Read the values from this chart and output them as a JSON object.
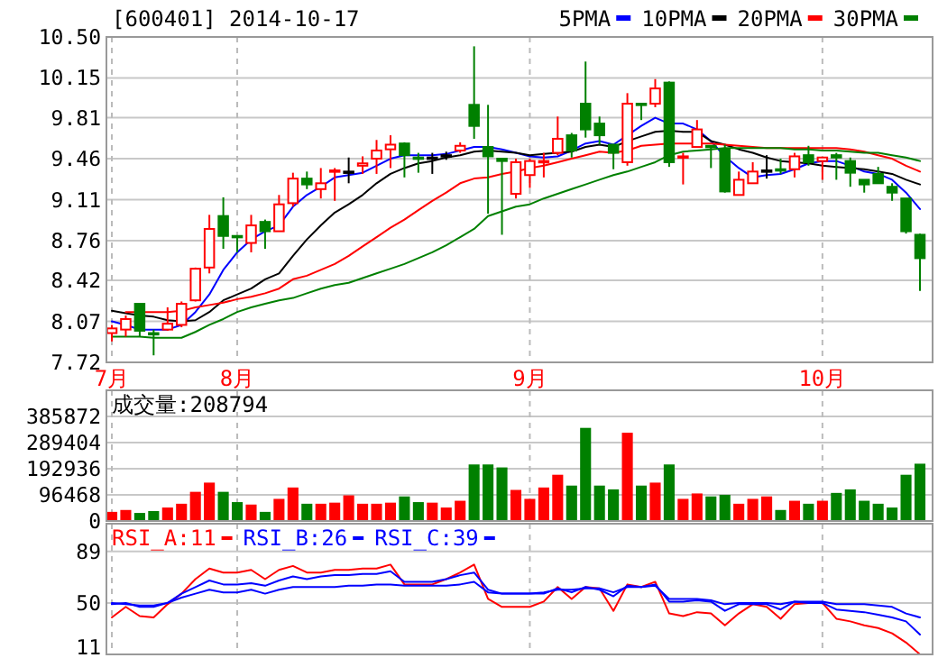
{
  "chart_data": [
    {
      "type": "candlestick",
      "title": "[600401] 2014-10-17",
      "grid": true,
      "legend": "top right",
      "categories": [
        "7月",
        null,
        null,
        null,
        null,
        null,
        null,
        null,
        null,
        "8月",
        null,
        null,
        null,
        null,
        null,
        null,
        null,
        null,
        null,
        null,
        null,
        null,
        null,
        null,
        null,
        null,
        null,
        null,
        null,
        null,
        "9月",
        null,
        null,
        null,
        null,
        null,
        null,
        null,
        null,
        null,
        null,
        null,
        null,
        null,
        null,
        null,
        null,
        null,
        null,
        null,
        null,
        "10月",
        null,
        null,
        null,
        null,
        null,
        null,
        null
      ],
      "ylim": [
        7.72,
        10.5
      ],
      "yticks": [
        7.72,
        8.07,
        8.42,
        8.76,
        9.11,
        9.46,
        9.81,
        10.15,
        {
          "value": 10.5,
          "label": "10.50"
        }
      ],
      "ohlc": [
        [
          7.97,
          8.04,
          7.9,
          8.01
        ],
        [
          8.0,
          8.12,
          7.94,
          8.09
        ],
        [
          8.22,
          8.22,
          7.94,
          7.99
        ],
        [
          7.97,
          8.0,
          7.78,
          7.96
        ],
        [
          8.0,
          8.19,
          7.99,
          8.05
        ],
        [
          8.04,
          8.24,
          8.02,
          8.22
        ],
        [
          8.25,
          8.53,
          8.24,
          8.52
        ],
        [
          8.53,
          8.98,
          8.48,
          8.86
        ],
        [
          8.97,
          9.13,
          8.69,
          8.8
        ],
        [
          8.8,
          8.8,
          8.66,
          8.79
        ],
        [
          8.74,
          8.98,
          8.66,
          8.89
        ],
        [
          8.92,
          8.94,
          8.69,
          8.84
        ],
        [
          8.84,
          9.15,
          8.84,
          9.07
        ],
        [
          9.08,
          9.34,
          9.05,
          9.29
        ],
        [
          9.29,
          9.35,
          9.2,
          9.24
        ],
        [
          9.2,
          9.38,
          9.12,
          9.25
        ],
        [
          9.35,
          9.38,
          9.1,
          9.36
        ],
        [
          9.35,
          9.47,
          9.25,
          9.35
        ],
        [
          9.4,
          9.48,
          9.33,
          9.42
        ],
        [
          9.46,
          9.62,
          9.33,
          9.53
        ],
        [
          9.54,
          9.66,
          9.38,
          9.58
        ],
        [
          9.59,
          9.6,
          9.3,
          9.49
        ],
        [
          9.47,
          9.51,
          9.34,
          9.46
        ],
        [
          9.47,
          9.51,
          9.33,
          9.47
        ],
        [
          9.49,
          9.52,
          9.45,
          9.49
        ],
        [
          9.53,
          9.6,
          9.51,
          9.57
        ],
        [
          9.92,
          10.42,
          9.63,
          9.74
        ],
        [
          9.56,
          9.92,
          8.99,
          9.48
        ],
        [
          9.46,
          9.46,
          8.81,
          9.44
        ],
        [
          9.16,
          9.46,
          9.12,
          9.43
        ],
        [
          9.32,
          9.46,
          9.21,
          9.44
        ],
        [
          9.43,
          9.51,
          9.3,
          9.44
        ],
        [
          9.51,
          9.82,
          9.49,
          9.63
        ],
        [
          9.66,
          9.68,
          9.47,
          9.53
        ],
        [
          9.93,
          10.29,
          9.64,
          9.71
        ],
        [
          9.76,
          9.82,
          9.58,
          9.66
        ],
        [
          9.58,
          9.58,
          9.37,
          9.51
        ],
        [
          9.43,
          10.02,
          9.4,
          9.93
        ],
        [
          9.93,
          9.93,
          9.79,
          9.92
        ],
        [
          9.93,
          10.14,
          9.9,
          10.06
        ],
        [
          10.11,
          10.12,
          9.39,
          9.43
        ],
        [
          9.47,
          9.51,
          9.24,
          9.48
        ],
        [
          9.56,
          9.79,
          9.56,
          9.71
        ],
        [
          9.57,
          9.57,
          9.38,
          9.56
        ],
        [
          9.54,
          9.58,
          9.17,
          9.18
        ],
        [
          9.15,
          9.35,
          9.15,
          9.28
        ],
        [
          9.25,
          9.43,
          9.25,
          9.35
        ],
        [
          9.36,
          9.49,
          9.29,
          9.36
        ],
        [
          9.37,
          9.46,
          9.33,
          9.36
        ],
        [
          9.37,
          9.51,
          9.3,
          9.48
        ],
        [
          9.49,
          9.57,
          9.4,
          9.43
        ],
        [
          9.44,
          9.47,
          9.28,
          9.47
        ],
        [
          9.49,
          9.51,
          9.28,
          9.47
        ],
        [
          9.44,
          9.47,
          9.22,
          9.34
        ],
        [
          9.28,
          9.28,
          9.17,
          9.24
        ],
        [
          9.33,
          9.39,
          9.25,
          9.25
        ],
        [
          9.22,
          9.25,
          9.1,
          9.17
        ],
        [
          9.12,
          9.12,
          8.82,
          8.84
        ],
        [
          8.81,
          8.82,
          8.33,
          8.61
        ]
      ],
      "series": [
        {
          "name": "5PMA",
          "type": "line",
          "color": "#0000ff",
          "values": [
            8.07,
            8.04,
            8.0,
            8.0,
            8.0,
            8.04,
            8.15,
            8.3,
            8.51,
            8.66,
            8.77,
            8.84,
            8.89,
            9.05,
            9.15,
            9.22,
            9.3,
            9.32,
            9.34,
            9.4,
            9.46,
            9.49,
            9.49,
            9.49,
            9.5,
            9.53,
            9.56,
            9.56,
            9.54,
            9.51,
            9.48,
            9.47,
            9.48,
            9.53,
            9.59,
            9.61,
            9.58,
            9.66,
            9.74,
            9.81,
            9.76,
            9.76,
            9.71,
            9.61,
            9.48,
            9.38,
            9.3,
            9.32,
            9.33,
            9.37,
            9.42,
            9.44,
            9.44,
            9.4,
            9.35,
            9.33,
            9.28,
            9.17,
            9.03
          ]
        },
        {
          "name": "10PMA",
          "type": "line",
          "color": "#000000",
          "values": [
            8.16,
            8.14,
            8.12,
            8.11,
            8.08,
            8.07,
            8.08,
            8.15,
            8.25,
            8.3,
            8.35,
            8.43,
            8.48,
            8.63,
            8.77,
            8.89,
            9.0,
            9.07,
            9.15,
            9.25,
            9.33,
            9.38,
            9.42,
            9.44,
            9.47,
            9.49,
            9.52,
            9.53,
            9.52,
            9.51,
            9.49,
            9.5,
            9.51,
            9.52,
            9.56,
            9.58,
            9.56,
            9.61,
            9.65,
            9.69,
            9.7,
            9.69,
            9.69,
            9.61,
            9.58,
            9.54,
            9.51,
            9.47,
            9.44,
            9.43,
            9.42,
            9.4,
            9.39,
            9.38,
            9.37,
            9.35,
            9.33,
            9.28,
            9.24
          ]
        },
        {
          "name": "20PMA",
          "type": "line",
          "color": "#ff0000",
          "values": [
            null,
            8.15,
            8.15,
            8.15,
            8.15,
            8.16,
            8.19,
            8.21,
            8.23,
            8.26,
            8.28,
            8.31,
            8.35,
            8.43,
            8.46,
            8.51,
            8.56,
            8.63,
            8.71,
            8.79,
            8.87,
            8.94,
            9.02,
            9.1,
            9.17,
            9.25,
            9.29,
            9.3,
            9.33,
            9.35,
            9.38,
            9.4,
            9.43,
            9.46,
            9.49,
            9.52,
            9.51,
            9.53,
            9.57,
            9.58,
            9.59,
            9.59,
            9.59,
            9.59,
            9.58,
            9.57,
            9.56,
            9.55,
            9.55,
            9.55,
            9.55,
            9.55,
            9.55,
            9.54,
            9.52,
            9.49,
            9.46,
            9.4,
            9.35
          ]
        },
        {
          "name": "30PMA",
          "type": "line",
          "color": "#008000",
          "values": [
            7.94,
            7.94,
            7.94,
            7.93,
            7.93,
            7.93,
            7.98,
            8.04,
            8.09,
            8.15,
            8.19,
            8.22,
            8.25,
            8.27,
            8.31,
            8.35,
            8.38,
            8.4,
            8.44,
            8.48,
            8.52,
            8.56,
            8.61,
            8.66,
            8.72,
            8.79,
            8.86,
            8.97,
            9.01,
            9.05,
            9.07,
            9.12,
            9.16,
            9.2,
            9.24,
            9.28,
            9.32,
            9.35,
            9.39,
            9.43,
            9.49,
            9.52,
            9.53,
            9.54,
            9.55,
            9.55,
            9.55,
            9.55,
            9.55,
            9.54,
            9.54,
            9.53,
            9.53,
            9.52,
            9.51,
            9.51,
            9.49,
            9.47,
            9.44
          ]
        }
      ]
    },
    {
      "type": "bar",
      "title": "成交量:208794",
      "grid": true,
      "tick_labels": "y",
      "categories": [
        null,
        null,
        null,
        null,
        null,
        null,
        null,
        null,
        null,
        null,
        null,
        null,
        null,
        null,
        null,
        null,
        null,
        null,
        null,
        null,
        null,
        null,
        null,
        null,
        null,
        null,
        null,
        null,
        null,
        null,
        null,
        null,
        null,
        null,
        null,
        null,
        null,
        null,
        null,
        null,
        null,
        null,
        null,
        null,
        null,
        null,
        null,
        null,
        null,
        null,
        null,
        null,
        null,
        null,
        null,
        null,
        null,
        null,
        null
      ],
      "ylim": [
        0,
        482340
      ],
      "yticks": [
        0,
        96468,
        192936,
        289404,
        385872
      ],
      "values": [
        31000,
        38000,
        27000,
        34000,
        47000,
        61000,
        105000,
        139000,
        105000,
        67000,
        58000,
        31000,
        79000,
        121000,
        61000,
        61000,
        65000,
        92000,
        61000,
        61000,
        65000,
        88000,
        67000,
        65000,
        47000,
        72000,
        206000,
        206000,
        195000,
        112000,
        79000,
        121000,
        168000,
        128000,
        341000,
        128000,
        114000,
        323000,
        128000,
        139000,
        206000,
        79000,
        99000,
        88000,
        94000,
        61000,
        79000,
        88000,
        38000,
        72000,
        61000,
        72000,
        101000,
        114000,
        72000,
        61000,
        47000,
        168000,
        208794
      ],
      "colors": [
        "#ff0000",
        "#ff0000",
        "#008000",
        "#008000",
        "#ff0000",
        "#ff0000",
        "#ff0000",
        "#ff0000",
        "#008000",
        "#008000",
        "#ff0000",
        "#008000",
        "#ff0000",
        "#ff0000",
        "#008000",
        "#ff0000",
        "#ff0000",
        "#ff0000",
        "#ff0000",
        "#ff0000",
        "#ff0000",
        "#008000",
        "#008000",
        "#ff0000",
        "#ff0000",
        "#ff0000",
        "#008000",
        "#008000",
        "#008000",
        "#ff0000",
        "#ff0000",
        "#ff0000",
        "#ff0000",
        "#008000",
        "#008000",
        "#008000",
        "#008000",
        "#ff0000",
        "#008000",
        "#ff0000",
        "#008000",
        "#ff0000",
        "#ff0000",
        "#008000",
        "#008000",
        "#ff0000",
        "#ff0000",
        "#ff0000",
        "#008000",
        "#ff0000",
        "#008000",
        "#ff0000",
        "#008000",
        "#008000",
        "#008000",
        "#008000",
        "#008000",
        "#008000",
        "#008000"
      ]
    },
    {
      "type": "line",
      "grid": true,
      "tick_labels": "y",
      "legend": "top left",
      "categories": [
        null,
        null,
        null,
        null,
        null,
        null,
        null,
        null,
        null,
        null,
        null,
        null,
        null,
        null,
        null,
        null,
        null,
        null,
        null,
        null,
        null,
        null,
        null,
        null,
        null,
        null,
        null,
        null,
        null,
        null,
        null,
        null,
        null,
        null,
        null,
        null,
        null,
        null,
        null,
        null,
        null,
        null,
        null,
        null,
        null,
        null,
        null,
        null,
        null,
        null,
        null,
        null,
        null,
        null,
        null,
        null,
        null,
        null,
        null
      ],
      "ylim": [
        11,
        110
      ],
      "yticks": [
        11,
        50,
        89
      ],
      "series": [
        {
          "name": "RSI_A:11",
          "color": "#ff0000",
          "values": [
            39,
            47,
            40,
            39,
            49,
            57,
            68,
            76,
            73,
            73,
            75,
            68,
            75,
            78,
            73,
            73,
            75,
            75,
            76,
            76,
            79,
            64,
            64,
            64,
            68,
            73,
            79,
            53,
            47,
            47,
            47,
            51,
            62,
            53,
            62,
            61,
            44,
            64,
            62,
            66,
            42,
            40,
            43,
            42,
            33,
            42,
            49,
            47,
            38,
            49,
            50,
            50,
            38,
            36,
            33,
            31,
            27,
            20,
            11
          ]
        },
        {
          "name": "RSI_B:26",
          "color": "#0000ff",
          "values": [
            49,
            50,
            47,
            47,
            50,
            57,
            62,
            67,
            64,
            64,
            65,
            63,
            67,
            70,
            68,
            70,
            71,
            71,
            72,
            72,
            74,
            66,
            66,
            66,
            68,
            71,
            73,
            60,
            57,
            57,
            57,
            57,
            61,
            58,
            62,
            60,
            55,
            63,
            62,
            64,
            51,
            51,
            52,
            51,
            44,
            49,
            49,
            49,
            45,
            51,
            50,
            50,
            45,
            44,
            43,
            41,
            39,
            36,
            26
          ]
        },
        {
          "name": "RSI_C:39",
          "color": "#0000ff",
          "values": [
            50,
            49,
            48,
            48,
            50,
            54,
            57,
            60,
            58,
            58,
            60,
            57,
            60,
            62,
            62,
            62,
            62,
            63,
            63,
            64,
            64,
            63,
            63,
            63,
            63,
            64,
            66,
            58,
            57,
            57,
            57,
            58,
            60,
            60,
            61,
            61,
            58,
            62,
            62,
            63,
            53,
            53,
            53,
            52,
            49,
            50,
            50,
            50,
            49,
            51,
            51,
            51,
            49,
            49,
            49,
            48,
            47,
            42,
            39
          ]
        }
      ]
    }
  ]
}
